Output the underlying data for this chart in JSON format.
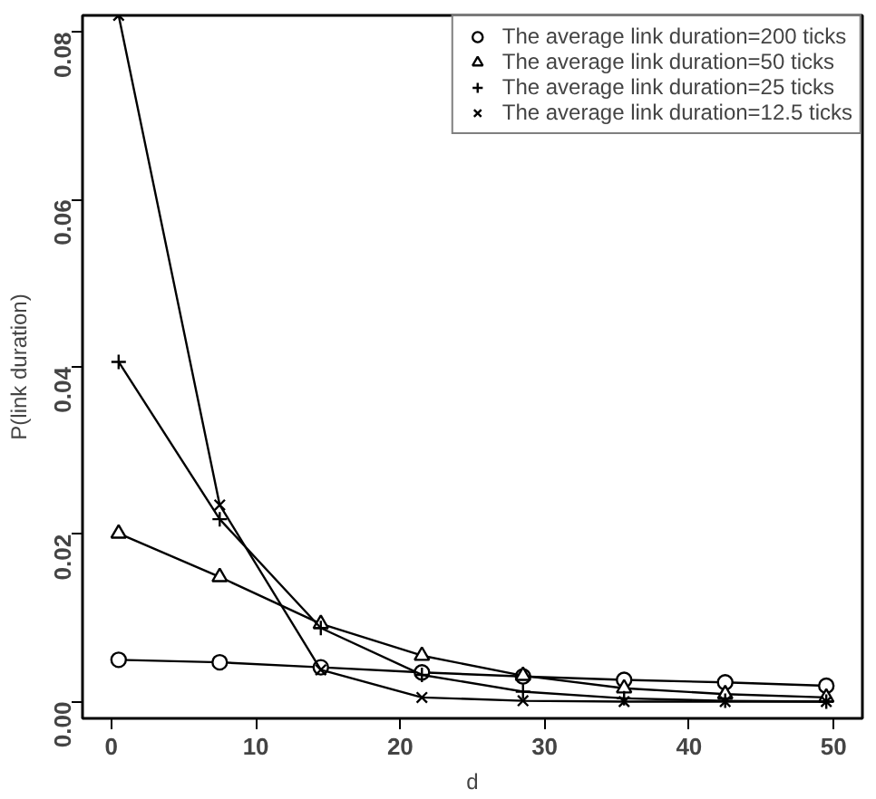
{
  "chart_data": {
    "type": "line",
    "xlabel": "d",
    "ylabel": "P(link duration)",
    "x": [
      0.5,
      7.5,
      14.5,
      21.5,
      28.5,
      35.5,
      42.5,
      49.5
    ],
    "series": [
      {
        "name": "The average link duration=200 ticks",
        "color": "#000000",
        "marker": "circle",
        "values": [
          0.005,
          0.0047,
          0.0041,
          0.0035,
          0.003,
          0.0026,
          0.0023,
          0.0019
        ]
      },
      {
        "name": "The average link duration=50 ticks",
        "color": "#000000",
        "marker": "triangle",
        "values": [
          0.0201,
          0.0149,
          0.0093,
          0.0055,
          0.0031,
          0.0016,
          0.0009,
          0.0005
        ]
      },
      {
        "name": "The average link duration=25 ticks",
        "color": "#000000",
        "marker": "cross",
        "values": [
          0.0406,
          0.0218,
          0.0088,
          0.0032,
          0.0012,
          0.0004,
          0.0001,
          0.0
        ]
      },
      {
        "name": "The average link duration=12.5 ticks",
        "color": "#000000",
        "marker": "x",
        "values": [
          0.082,
          0.0235,
          0.0038,
          0.0005,
          0.0001,
          0.0,
          0.0,
          0.0
        ]
      }
    ],
    "xlim": [
      -2,
      52
    ],
    "ylim": [
      -0.002,
      0.082
    ],
    "xticks": [
      0,
      10,
      20,
      30,
      40,
      50
    ],
    "yticks": [
      {
        "value": 0,
        "label": "0.00"
      },
      {
        "value": 0.02,
        "label": "0.02"
      },
      {
        "value": 0.04,
        "label": "0.04"
      },
      {
        "value": 0.06,
        "label": "0.06"
      },
      {
        "value": 0.08,
        "label": "0.08"
      }
    ],
    "grid": false,
    "legend": "top right",
    "line_style": "solid"
  }
}
